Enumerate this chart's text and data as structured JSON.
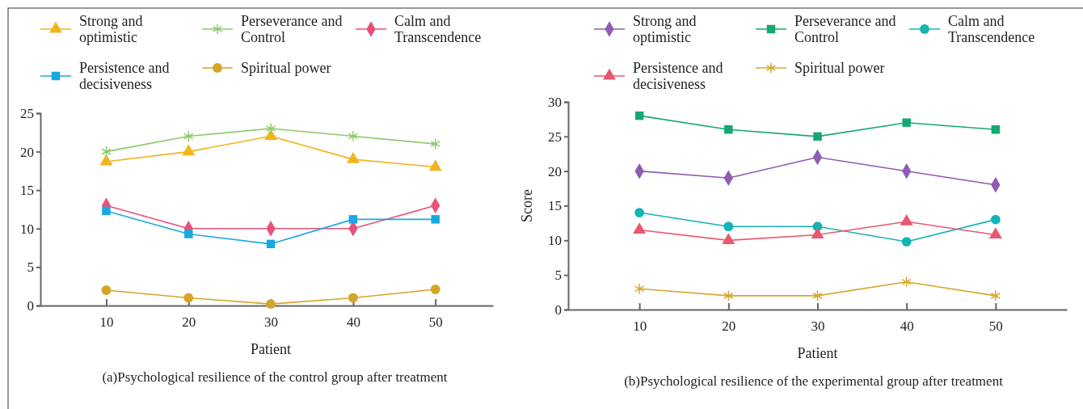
{
  "chart_data": [
    {
      "type": "line",
      "title": "(a)Psychological resilience of the control group after treatment",
      "xlabel": "Patient",
      "x": [
        10,
        20,
        30,
        40,
        50
      ],
      "xlim": [
        2,
        57
      ],
      "xticks": [
        10,
        20,
        30,
        40,
        50
      ],
      "ylim": [
        0,
        25
      ],
      "yticks": [
        0,
        5,
        10,
        15,
        20,
        25
      ],
      "grid": false,
      "legend": "top",
      "series": [
        {
          "name": "Strong and optimistic",
          "color": "#f0b41c",
          "marker": "triangle",
          "values": [
            18.7,
            20,
            22,
            19,
            18
          ]
        },
        {
          "name": "Perseverance and Control",
          "color": "#8dc86a",
          "marker": "cross",
          "values": [
            20,
            22,
            23,
            22,
            21
          ]
        },
        {
          "name": "Calm and Transcendence",
          "color": "#e8527a",
          "marker": "diamond",
          "values": [
            13,
            10,
            10,
            10,
            13
          ]
        },
        {
          "name": "Persistence and decisiveness",
          "color": "#1ba8e0",
          "marker": "square",
          "values": [
            12.3,
            9.3,
            8,
            11.2,
            11.2
          ]
        },
        {
          "name": "Spiritual power",
          "color": "#d4a528",
          "marker": "circle",
          "values": [
            2,
            1,
            0.2,
            1,
            2.1
          ]
        }
      ]
    },
    {
      "type": "line",
      "title": "(b)Psychological resilience of the experimental group after treatment",
      "xlabel": "Patient",
      "ylabel": "Score",
      "x": [
        10,
        20,
        30,
        40,
        50
      ],
      "xlim": [
        2,
        58
      ],
      "xticks": [
        10,
        20,
        30,
        40,
        50
      ],
      "ylim": [
        0,
        30
      ],
      "yticks": [
        0,
        5,
        10,
        15,
        20,
        25,
        30
      ],
      "grid": false,
      "legend": "top",
      "series": [
        {
          "name": "Strong and optimistic",
          "color": "#8e5cb0",
          "marker": "diamond",
          "values": [
            20,
            19,
            22,
            20,
            18
          ]
        },
        {
          "name": "Perseverance and Control",
          "color": "#16a870",
          "marker": "square",
          "values": [
            28,
            26,
            25,
            27,
            26
          ]
        },
        {
          "name": "Calm and Transcendence",
          "color": "#14b4b4",
          "marker": "circle",
          "values": [
            14,
            12,
            12,
            9.8,
            13
          ]
        },
        {
          "name": "Persistence and decisiveness",
          "color": "#e85870",
          "marker": "triangle",
          "values": [
            11.5,
            10,
            10.8,
            12.7,
            10.8
          ]
        },
        {
          "name": "Spiritual power",
          "color": "#d4a830",
          "marker": "cross",
          "values": [
            3,
            2,
            2,
            4,
            2
          ]
        }
      ]
    }
  ]
}
